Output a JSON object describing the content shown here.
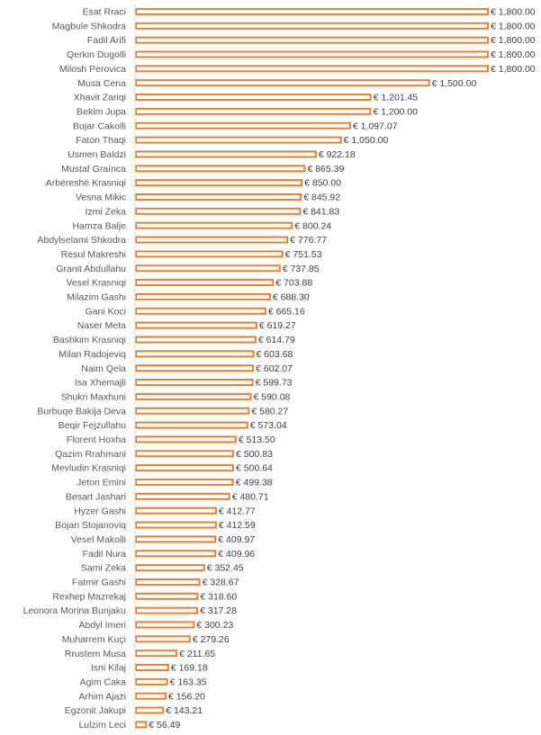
{
  "chart_data": {
    "type": "bar",
    "orientation": "horizontal",
    "bar_color": "#ED7D31",
    "bar_fill": "#FFFFFF",
    "axis_color": "#D9D9D9",
    "grid": false,
    "xlim": [
      0,
      1800
    ],
    "categories": [
      "Esat Rraci",
      "Magbule Shkodra",
      "Fadil Arifi",
      "Qerkin Dugolli",
      "Milosh Perovica",
      "Musa Cena",
      "Xhavit Zariqi",
      "Bekim Jupa",
      "Bujar Cakolli",
      "Faton Thaqi",
      "Usmen Baldzi",
      "Mustaf Graínca",
      "Arbëreshë Krasniqi",
      "Vesna Mikic",
      "Izmi Zeka",
      "Hamza Balje",
      "Abdylselami Shkodra",
      "Resul Makreshi",
      "Granit Abdullahu",
      "Vesel Krasniqi",
      "Milazim Gashi",
      "Gani Koci",
      "Naser Meta",
      "Bashkim Krasniqi",
      "Milan Radojeviq",
      "Naim Qela",
      "Isa Xhemajli",
      "Shukri Maxhuni",
      "Burbuqe Bakija Deva",
      "Beqir Fejzullahu",
      "Florent Hoxha",
      "Qazim Rrahmani",
      "Mevludin Krasniqi",
      "Jeton Emini",
      "Besart Jashari",
      "Hyzer Gashi",
      "Bojan Stojanoviq",
      "Vesel Makolli",
      "Fadil Nura",
      "Sami Zeka",
      "Fatmir Gashi",
      "Rexhep Mazrekaj",
      "Leonora Morina Bunjaku",
      "Abdyl Imeri",
      "Muharrem Kuçi",
      "Rrustem Musa",
      "Isni Kilaj",
      "Agim Caka",
      "Arhim Ajazi",
      "Egzonit Jakupi",
      "Lulzim Leci"
    ],
    "values": [
      1800.0,
      1800.0,
      1800.0,
      1800.0,
      1800.0,
      1500.0,
      1201.45,
      1200.0,
      1097.07,
      1050.0,
      922.18,
      865.39,
      850.0,
      845.92,
      841.83,
      800.24,
      776.77,
      751.53,
      737.85,
      703.88,
      688.3,
      665.16,
      619.27,
      614.79,
      603.68,
      602.07,
      599.73,
      590.08,
      580.27,
      573.04,
      513.5,
      500.83,
      500.64,
      499.38,
      480.71,
      412.77,
      412.59,
      409.97,
      409.96,
      352.45,
      328.67,
      318.6,
      317.28,
      300.23,
      279.26,
      211.65,
      169.18,
      163.35,
      156.2,
      143.21,
      56.49
    ],
    "value_labels": [
      "€ 1,800.00",
      "€ 1,800.00",
      "€ 1,800.00",
      "€ 1,800.00",
      "€ 1,800.00",
      "€ 1,500.00",
      "€ 1,201.45",
      "€ 1,200.00",
      "€ 1,097.07",
      "€ 1,050.00",
      "€ 922.18",
      "€ 865.39",
      "€ 850.00",
      "€ 845.92",
      "€ 841.83",
      "€ 800.24",
      "€ 776.77",
      "€ 751.53",
      "€ 737.85",
      "€ 703.88",
      "€ 688.30",
      "€ 665.16",
      "€ 619.27",
      "€ 614.79",
      "€ 603.68",
      "€ 602.07",
      "€ 599.73",
      "€ 590.08",
      "€ 580.27",
      "€ 573.04",
      "€ 513.50",
      "€ 500.83",
      "€ 500.64",
      "€ 499.38",
      "€ 480.71",
      "€ 412.77",
      "€ 412.59",
      "€ 409.97",
      "€ 409.96",
      "€ 352.45",
      "€ 328.67",
      "€ 318.60",
      "€ 317.28",
      "€ 300.23",
      "€ 279.26",
      "€ 211.65",
      "€ 169.18",
      "€ 163.35",
      "€ 156.20",
      "€ 143.21",
      "€ 56.49"
    ]
  }
}
